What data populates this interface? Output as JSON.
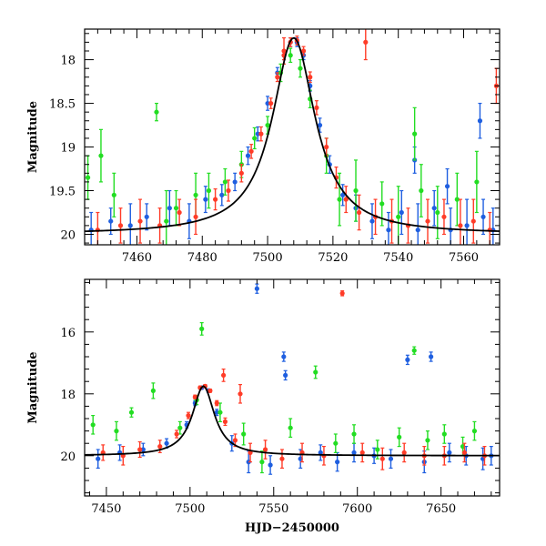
{
  "chart_data": [
    {
      "type": "scatter",
      "title": "",
      "xlabel": "",
      "ylabel": "Magnitude",
      "xlim": [
        7444,
        7571
      ],
      "ylim": [
        20.12,
        17.65
      ],
      "y_reversed": true,
      "grid": false,
      "legend": "none",
      "x_ticks": [
        7460,
        7480,
        7500,
        7520,
        7540,
        7560
      ],
      "y_ticks": [
        18,
        18.5,
        19,
        19.5,
        20
      ],
      "model_curve": {
        "name": "",
        "color": "#000000",
        "peak_x": 7508,
        "peak_mag": 17.75,
        "base_mag": 20.0,
        "width": 8
      },
      "series": [
        {
          "color": "#1f5fe0",
          "x": [
            7446,
            7452,
            7458,
            7463,
            7470,
            7476,
            7481,
            7486,
            7490,
            7494,
            7497,
            7500,
            7503,
            7505,
            7507,
            7509,
            7511,
            7513,
            7516,
            7519,
            7523,
            7527,
            7532,
            7537,
            7541,
            7546,
            7551,
            7556,
            7561,
            7566,
            7569,
            7545,
            7555,
            7565
          ],
          "y": [
            19.95,
            19.85,
            19.9,
            19.8,
            19.7,
            19.85,
            19.6,
            19.55,
            19.4,
            19.1,
            18.85,
            18.5,
            18.15,
            17.95,
            17.8,
            17.8,
            17.95,
            18.3,
            18.75,
            19.2,
            19.55,
            19.7,
            19.85,
            19.95,
            19.75,
            19.95,
            19.7,
            19.95,
            19.9,
            19.8,
            19.95,
            19.15,
            19.45,
            18.7
          ],
          "err": [
            0.2,
            0.15,
            0.25,
            0.15,
            0.2,
            0.2,
            0.15,
            0.12,
            0.1,
            0.1,
            0.08,
            0.08,
            0.06,
            0.05,
            0.05,
            0.05,
            0.05,
            0.06,
            0.08,
            0.1,
            0.12,
            0.15,
            0.2,
            0.2,
            0.25,
            0.3,
            0.2,
            0.25,
            0.3,
            0.2,
            0.25,
            0.15,
            0.2,
            0.2
          ]
        },
        {
          "color": "#22dd22",
          "x": [
            7445,
            7449,
            7453,
            7466,
            7472,
            7478,
            7482,
            7487,
            7492,
            7496,
            7500,
            7504,
            7507,
            7510,
            7513,
            7518,
            7522,
            7527,
            7535,
            7540,
            7547,
            7552,
            7558,
            7564,
            7469,
            7545
          ],
          "y": [
            19.35,
            19.1,
            19.55,
            18.6,
            19.7,
            19.55,
            19.5,
            19.4,
            19.2,
            18.9,
            18.75,
            18.15,
            17.95,
            18.1,
            18.45,
            19.1,
            19.6,
            19.5,
            19.65,
            19.8,
            19.5,
            19.75,
            19.6,
            19.4,
            19.85,
            18.85
          ],
          "err": [
            0.25,
            0.3,
            0.25,
            0.1,
            0.2,
            0.25,
            0.2,
            0.15,
            0.15,
            0.12,
            0.1,
            0.1,
            0.08,
            0.1,
            0.1,
            0.2,
            0.3,
            0.35,
            0.25,
            0.35,
            0.3,
            0.3,
            0.3,
            0.35,
            0.35,
            0.3
          ]
        },
        {
          "color": "#ff3c28",
          "x": [
            7448,
            7455,
            7461,
            7467,
            7473,
            7478,
            7484,
            7488,
            7492,
            7495,
            7498,
            7501,
            7503,
            7505,
            7507,
            7509,
            7511,
            7513,
            7515,
            7518,
            7521,
            7524,
            7528,
            7533,
            7538,
            7543,
            7549,
            7554,
            7559,
            7563,
            7568,
            7570,
            7505,
            7530
          ],
          "y": [
            19.95,
            19.9,
            19.85,
            19.9,
            19.75,
            19.8,
            19.6,
            19.5,
            19.3,
            19.05,
            18.85,
            18.5,
            18.2,
            17.95,
            17.8,
            17.78,
            17.9,
            18.2,
            18.55,
            19.0,
            19.35,
            19.6,
            19.75,
            19.8,
            19.85,
            19.9,
            19.85,
            19.8,
            19.9,
            19.85,
            19.95,
            18.3,
            17.9,
            17.8
          ],
          "err": [
            0.2,
            0.2,
            0.25,
            0.2,
            0.15,
            0.2,
            0.12,
            0.12,
            0.1,
            0.08,
            0.08,
            0.06,
            0.05,
            0.05,
            0.05,
            0.05,
            0.05,
            0.06,
            0.08,
            0.1,
            0.12,
            0.15,
            0.2,
            0.2,
            0.25,
            0.2,
            0.25,
            0.2,
            0.3,
            0.25,
            0.2,
            0.2,
            0.15,
            0.2
          ]
        }
      ]
    },
    {
      "type": "scatter",
      "title": "",
      "xlabel": "HJD−2450000",
      "ylabel": "Magnitude",
      "xlim": [
        7437,
        7685
      ],
      "ylim": [
        21.3,
        14.3
      ],
      "y_reversed": true,
      "grid": false,
      "legend": "none",
      "x_ticks": [
        7450,
        7500,
        7550,
        7600,
        7650
      ],
      "y_ticks": [
        16,
        18,
        20
      ],
      "model_curve": {
        "name": "",
        "color": "#000000",
        "peak_x": 7508,
        "peak_mag": 17.75,
        "base_mag": 20.0,
        "width": 8
      },
      "series": [
        {
          "color": "#1f5fe0",
          "x": [
            7445,
            7458,
            7472,
            7486,
            7498,
            7503,
            7507,
            7511,
            7516,
            7525,
            7535,
            7540,
            7548,
            7556,
            7557,
            7566,
            7578,
            7588,
            7598,
            7610,
            7620,
            7630,
            7640,
            7644,
            7655,
            7665,
            7675,
            7680
          ],
          "y": [
            20.1,
            19.9,
            19.8,
            19.6,
            19.0,
            18.3,
            17.8,
            17.9,
            18.6,
            19.6,
            20.2,
            14.6,
            20.3,
            16.8,
            17.4,
            20.1,
            19.9,
            20.2,
            19.9,
            20.0,
            20.1,
            16.9,
            20.2,
            16.8,
            19.9,
            20.0,
            20.1,
            20.0
          ],
          "err": [
            0.3,
            0.25,
            0.2,
            0.15,
            0.1,
            0.08,
            0.05,
            0.06,
            0.1,
            0.25,
            0.35,
            0.15,
            0.3,
            0.15,
            0.15,
            0.3,
            0.25,
            0.3,
            0.3,
            0.25,
            0.3,
            0.15,
            0.35,
            0.15,
            0.3,
            0.3,
            0.35,
            0.3
          ]
        },
        {
          "color": "#22dd22",
          "x": [
            7442,
            7456,
            7465,
            7478,
            7494,
            7504,
            7507,
            7518,
            7532,
            7543,
            7560,
            7575,
            7587,
            7598,
            7612,
            7625,
            7634,
            7642,
            7652,
            7663,
            7670
          ],
          "y": [
            19.0,
            19.2,
            18.6,
            17.9,
            19.1,
            18.2,
            15.9,
            18.6,
            19.3,
            20.2,
            19.1,
            17.3,
            19.6,
            19.3,
            19.8,
            19.4,
            16.6,
            19.5,
            19.3,
            19.7,
            19.2
          ],
          "err": [
            0.3,
            0.3,
            0.15,
            0.25,
            0.2,
            0.15,
            0.2,
            0.3,
            0.35,
            0.35,
            0.3,
            0.2,
            0.3,
            0.3,
            0.3,
            0.3,
            0.12,
            0.3,
            0.3,
            0.3,
            0.3
          ]
        },
        {
          "color": "#ff3c28",
          "x": [
            7448,
            7460,
            7470,
            7482,
            7492,
            7499,
            7503,
            7506,
            7509,
            7512,
            7516,
            7521,
            7527,
            7536,
            7545,
            7555,
            7567,
            7580,
            7591,
            7603,
            7615,
            7628,
            7640,
            7652,
            7664,
            7676,
            7520,
            7530
          ],
          "y": [
            19.9,
            20.0,
            19.8,
            19.7,
            19.3,
            18.7,
            18.1,
            17.8,
            17.75,
            17.9,
            18.3,
            18.9,
            19.5,
            19.9,
            19.8,
            20.1,
            19.9,
            20.0,
            14.75,
            19.9,
            20.1,
            19.9,
            20.0,
            20.0,
            19.9,
            20.0,
            17.4,
            18.0
          ],
          "err": [
            0.25,
            0.3,
            0.25,
            0.2,
            0.12,
            0.1,
            0.06,
            0.05,
            0.05,
            0.05,
            0.08,
            0.12,
            0.2,
            0.3,
            0.3,
            0.3,
            0.3,
            0.3,
            0.08,
            0.3,
            0.35,
            0.3,
            0.3,
            0.3,
            0.3,
            0.3,
            0.2,
            0.3
          ]
        }
      ]
    }
  ]
}
